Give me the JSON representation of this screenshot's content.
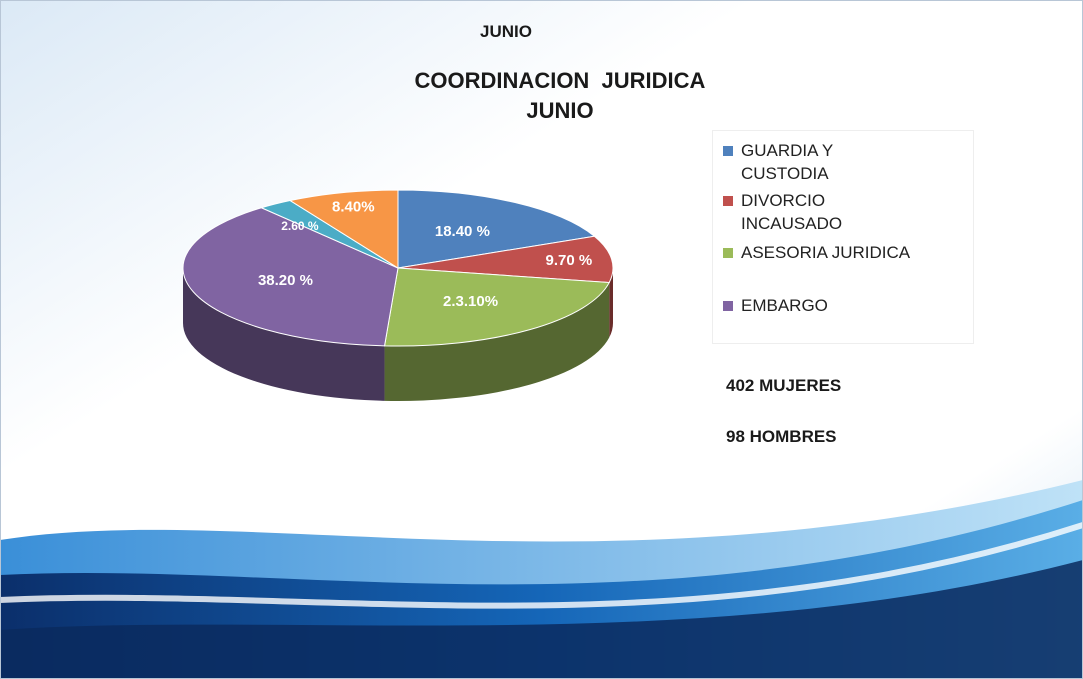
{
  "chart_data": {
    "type": "pie3d",
    "header": "JUNIO",
    "title": "COORDINACION  JURIDICA",
    "subtitle": "JUNIO",
    "categories": [
      "GUARDIA Y CUSTODIA",
      "DIVORCIO INCAUSADO",
      "ASESORIA JURIDICA",
      "EMBARGO",
      null,
      null
    ],
    "values": [
      18.4,
      9.7,
      23.1,
      38.2,
      2.6,
      8.4
    ],
    "value_labels": [
      "18.40 %",
      "9.70 %",
      "2.3.10%",
      "38.20 %",
      "2.60 %",
      "8.40%"
    ],
    "colors": [
      "#4f81bd",
      "#c0504d",
      "#9bbb59",
      "#8064a2",
      "#4bacc6",
      "#f79646"
    ],
    "annotations": [
      "402 MUJERES",
      "98 HOMBRES"
    ],
    "legend": "right"
  }
}
